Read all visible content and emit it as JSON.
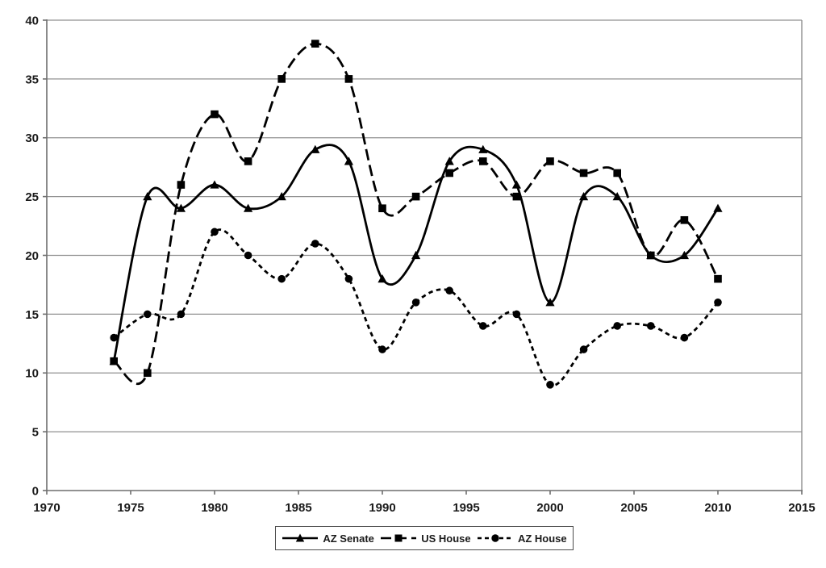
{
  "chart_data": {
    "type": "line",
    "title": "",
    "xlabel": "",
    "ylabel": "",
    "x": [
      1974,
      1976,
      1978,
      1980,
      1982,
      1984,
      1986,
      1988,
      1990,
      1992,
      1994,
      1996,
      1998,
      2000,
      2002,
      2004,
      2006,
      2008,
      2010
    ],
    "series": [
      {
        "name": "AZ Senate",
        "marker": "triangle",
        "line_style": "solid",
        "values": [
          11,
          25,
          24,
          26,
          24,
          25,
          29,
          28,
          18,
          20,
          28,
          29,
          26,
          16,
          25,
          25,
          20,
          20,
          24
        ]
      },
      {
        "name": "US House",
        "marker": "square",
        "line_style": "long-dash",
        "values": [
          11,
          10,
          26,
          32,
          28,
          35,
          38,
          35,
          24,
          25,
          27,
          28,
          25,
          28,
          27,
          27,
          20,
          23,
          18
        ]
      },
      {
        "name": "AZ House",
        "marker": "circle",
        "line_style": "short-dash",
        "values": [
          13,
          15,
          15,
          22,
          20,
          18,
          21,
          18,
          12,
          16,
          17,
          14,
          15,
          9,
          12,
          14,
          14,
          13,
          16
        ]
      }
    ],
    "xlim": [
      1970,
      2015
    ],
    "ylim": [
      0,
      40
    ],
    "x_ticks": [
      1970,
      1975,
      1980,
      1985,
      1990,
      1995,
      2000,
      2005,
      2010,
      2015
    ],
    "y_ticks": [
      0,
      5,
      10,
      15,
      20,
      25,
      30,
      35,
      40
    ],
    "grid": true,
    "smoothed_lines": true,
    "legend_position": "bottom-center",
    "legend_border": true,
    "colors": {
      "series_line": "#000000",
      "marker_fill": "#000000",
      "gridline": "#909090",
      "axis": "#6e6e6e",
      "tick_text": "#1a1a1a",
      "background": "#ffffff"
    }
  }
}
